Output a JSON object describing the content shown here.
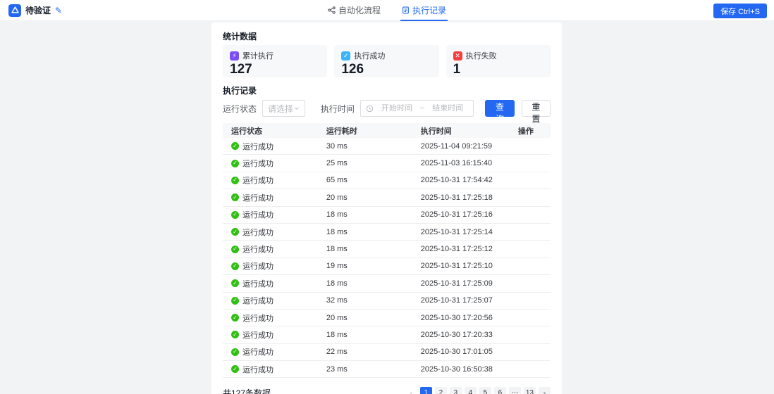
{
  "header": {
    "project_name": "待验证",
    "tabs": [
      {
        "label": "自动化流程"
      },
      {
        "label": "执行记录"
      }
    ],
    "save_label": "保存 Ctrl+S"
  },
  "stats": {
    "section_title": "统计数据",
    "cards": [
      {
        "label": "累计执行",
        "value": "127",
        "icon": "⚡",
        "icon_name": "total-runs-icon",
        "color": "#7b4df5"
      },
      {
        "label": "执行成功",
        "value": "126",
        "icon": "✓",
        "icon_name": "success-check-icon",
        "color": "#3cb4f6"
      },
      {
        "label": "执行失败",
        "value": "1",
        "icon": "✕",
        "icon_name": "fail-cross-icon",
        "color": "#f53f3f"
      }
    ]
  },
  "records": {
    "section_title": "执行记录",
    "filters": {
      "status_label": "运行状态",
      "status_placeholder": "请选择",
      "time_label": "执行时间",
      "start_placeholder": "开始时间",
      "range_separator": "~",
      "end_placeholder": "结束时间",
      "search_label": "查询",
      "reset_label": "重置"
    },
    "table": {
      "columns": [
        "运行状态",
        "运行耗时",
        "执行时间",
        "操作"
      ],
      "rows": [
        {
          "status": "运行成功",
          "duration": "30 ms",
          "time": "2025-11-04 09:21:59"
        },
        {
          "status": "运行成功",
          "duration": "25 ms",
          "time": "2025-11-03 16:15:40"
        },
        {
          "status": "运行成功",
          "duration": "65 ms",
          "time": "2025-10-31 17:54:42"
        },
        {
          "status": "运行成功",
          "duration": "20 ms",
          "time": "2025-10-31 17:25:18"
        },
        {
          "status": "运行成功",
          "duration": "18 ms",
          "time": "2025-10-31 17:25:16"
        },
        {
          "status": "运行成功",
          "duration": "18 ms",
          "time": "2025-10-31 17:25:14"
        },
        {
          "status": "运行成功",
          "duration": "18 ms",
          "time": "2025-10-31 17:25:12"
        },
        {
          "status": "运行成功",
          "duration": "19 ms",
          "time": "2025-10-31 17:25:10"
        },
        {
          "status": "运行成功",
          "duration": "18 ms",
          "time": "2025-10-31 17:25:09"
        },
        {
          "status": "运行成功",
          "duration": "32 ms",
          "time": "2025-10-31 17:25:07"
        },
        {
          "status": "运行成功",
          "duration": "20 ms",
          "time": "2025-10-30 17:20:56"
        },
        {
          "status": "运行成功",
          "duration": "18 ms",
          "time": "2025-10-30 17:20:33"
        },
        {
          "status": "运行成功",
          "duration": "22 ms",
          "time": "2025-10-30 17:01:05"
        },
        {
          "status": "运行成功",
          "duration": "23 ms",
          "time": "2025-10-30 16:50:38"
        }
      ]
    },
    "footer": {
      "total_text": "共127条数据",
      "prev_label": "‹",
      "next_label": "›",
      "pages": [
        "1",
        "2",
        "3",
        "4",
        "5",
        "6",
        "⋯",
        "13"
      ],
      "active_page": "1"
    }
  },
  "colors": {
    "primary": "#2468f2",
    "success": "#30bf13"
  }
}
